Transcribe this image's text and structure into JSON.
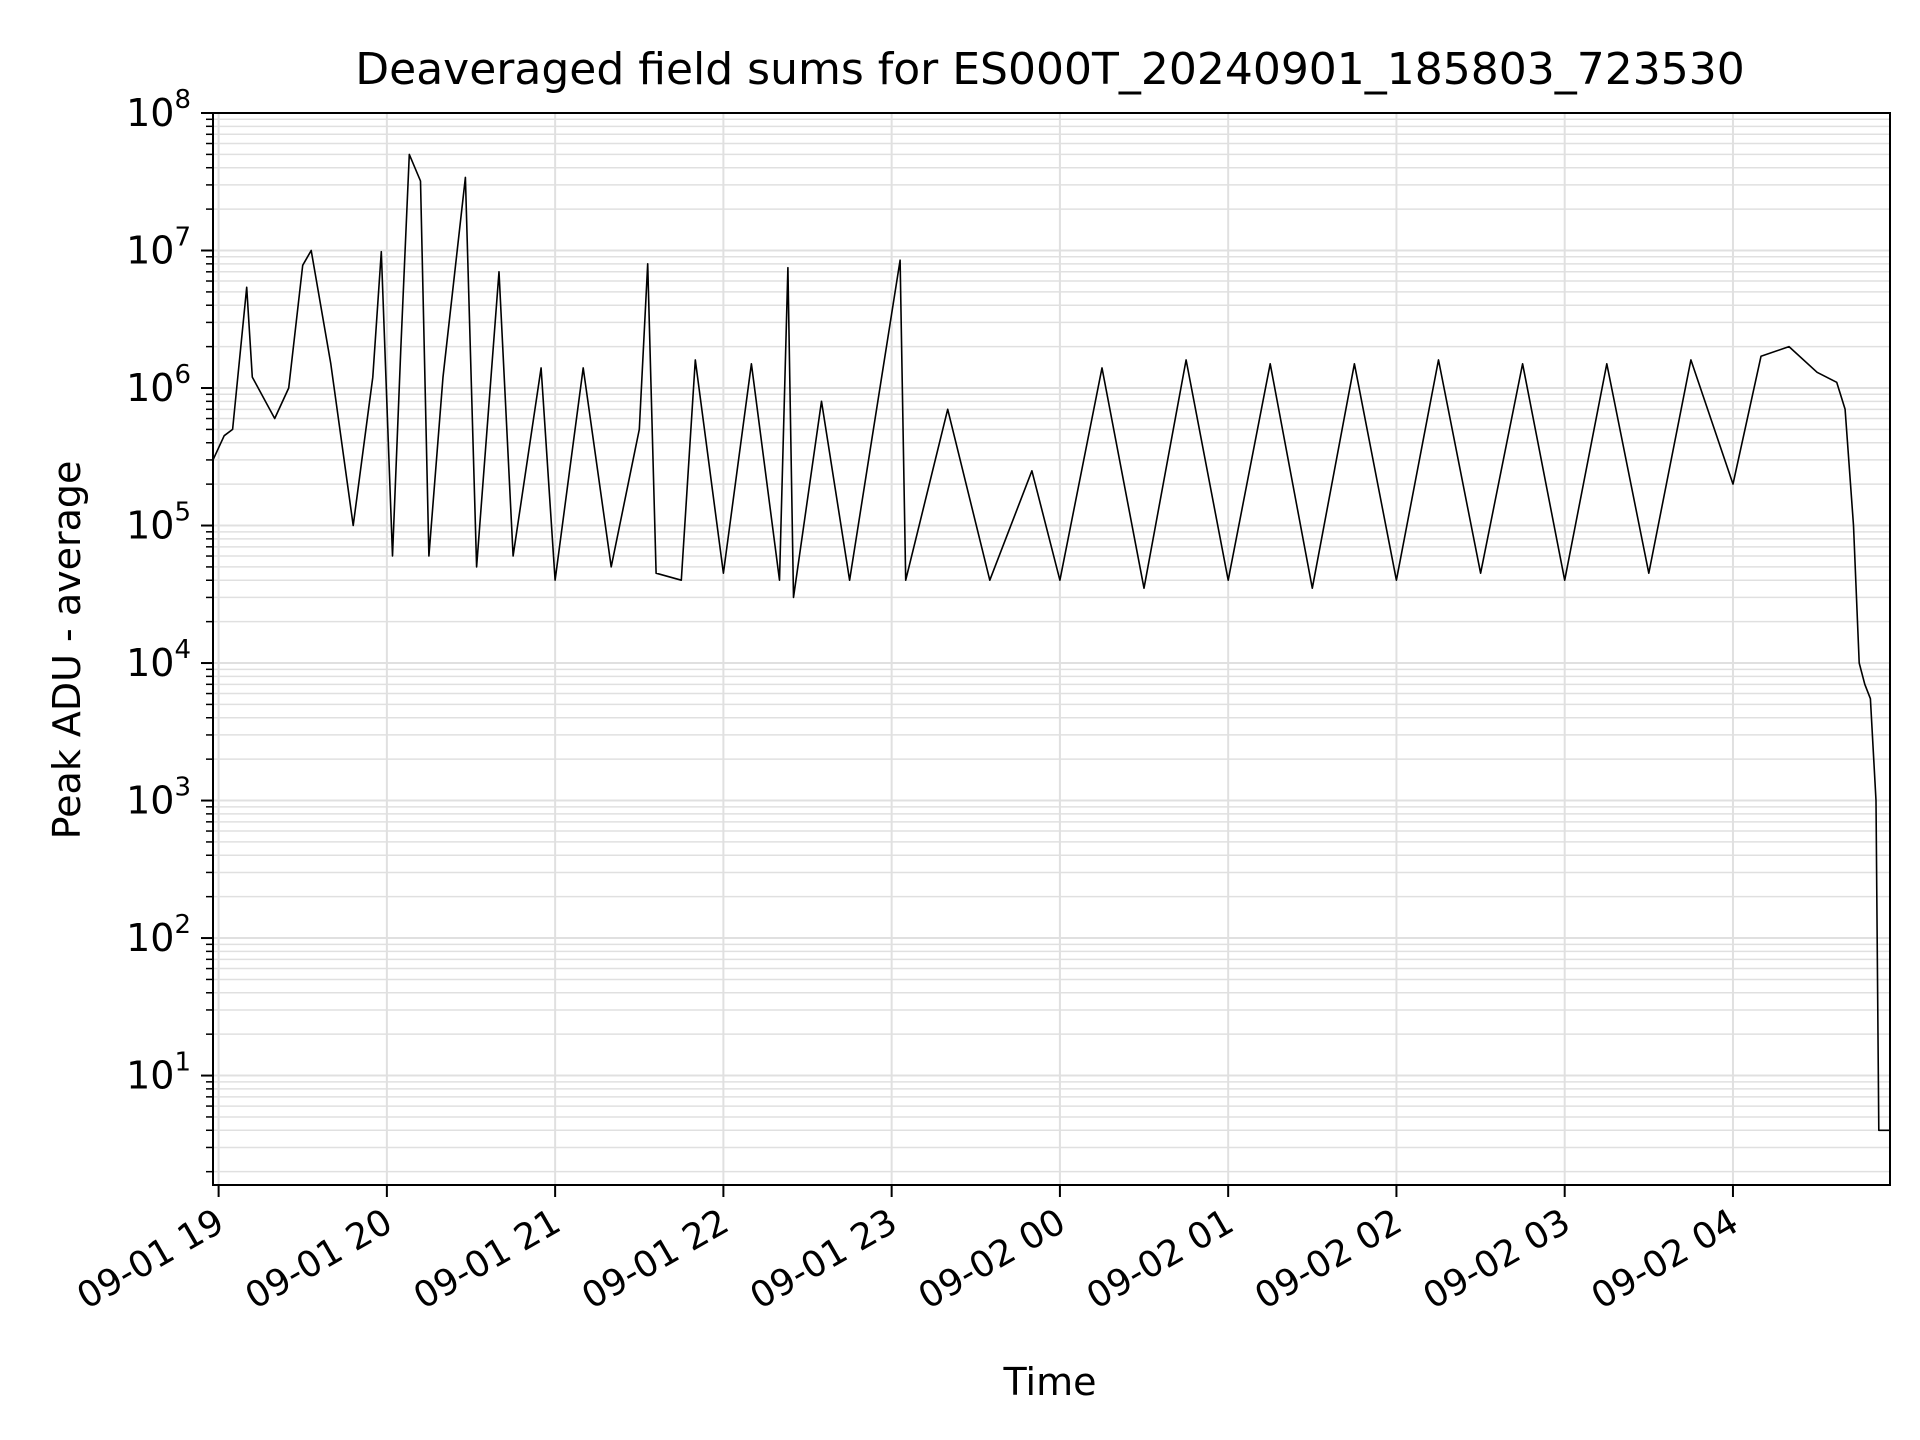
{
  "chart_data": {
    "type": "line",
    "title": "Deaveraged field sums for ES000T_20240901_185803_723530",
    "xlabel": "Time",
    "ylabel": "Peak ADU - average",
    "yscale": "log",
    "ylim": [
      1.6,
      100000000
    ],
    "xlim": [
      "2024-09-01 18:58",
      "2024-09-02 04:56"
    ],
    "grid": true,
    "line_color": "#000000",
    "grid_color": "#e0e0e0",
    "x_ticks": [
      {
        "t": "2024-09-01 19:00",
        "label": "09-01 19"
      },
      {
        "t": "2024-09-01 20:00",
        "label": "09-01 20"
      },
      {
        "t": "2024-09-01 21:00",
        "label": "09-01 21"
      },
      {
        "t": "2024-09-01 22:00",
        "label": "09-01 22"
      },
      {
        "t": "2024-09-01 23:00",
        "label": "09-01 23"
      },
      {
        "t": "2024-09-02 00:00",
        "label": "09-02 00"
      },
      {
        "t": "2024-09-02 01:00",
        "label": "09-02 01"
      },
      {
        "t": "2024-09-02 02:00",
        "label": "09-02 02"
      },
      {
        "t": "2024-09-02 03:00",
        "label": "09-02 03"
      },
      {
        "t": "2024-09-02 04:00",
        "label": "09-02 04"
      }
    ],
    "y_ticks": [
      {
        "value": 10,
        "base": "10",
        "exp": "1"
      },
      {
        "value": 100,
        "base": "10",
        "exp": "2"
      },
      {
        "value": 1000,
        "base": "10",
        "exp": "3"
      },
      {
        "value": 10000,
        "base": "10",
        "exp": "4"
      },
      {
        "value": 100000,
        "base": "10",
        "exp": "5"
      },
      {
        "value": 1000000,
        "base": "10",
        "exp": "6"
      },
      {
        "value": 10000000,
        "base": "10",
        "exp": "7"
      },
      {
        "value": 100000000,
        "base": "10",
        "exp": "8"
      }
    ],
    "series": [
      {
        "points": [
          [
            "2024-09-01 18:58",
            300000
          ],
          [
            "2024-09-01 19:02",
            450000
          ],
          [
            "2024-09-01 19:05",
            500000
          ],
          [
            "2024-09-01 19:10",
            5400000
          ],
          [
            "2024-09-01 19:12",
            1200000
          ],
          [
            "2024-09-01 19:20",
            600000
          ],
          [
            "2024-09-01 19:25",
            1000000
          ],
          [
            "2024-09-01 19:30",
            7800000
          ],
          [
            "2024-09-01 19:33",
            10000000
          ],
          [
            "2024-09-01 19:40",
            1500000
          ],
          [
            "2024-09-01 19:48",
            100000
          ],
          [
            "2024-09-01 19:55",
            1200000
          ],
          [
            "2024-09-01 19:58",
            9800000
          ],
          [
            "2024-09-01 20:02",
            60000
          ],
          [
            "2024-09-01 20:05",
            2000000
          ],
          [
            "2024-09-01 20:08",
            50000000
          ],
          [
            "2024-09-01 20:12",
            32000000
          ],
          [
            "2024-09-01 20:15",
            60000
          ],
          [
            "2024-09-01 20:20",
            1200000
          ],
          [
            "2024-09-01 20:28",
            34000000
          ],
          [
            "2024-09-01 20:32",
            50000
          ],
          [
            "2024-09-01 20:40",
            7000000
          ],
          [
            "2024-09-01 20:45",
            60000
          ],
          [
            "2024-09-01 20:55",
            1400000
          ],
          [
            "2024-09-01 21:00",
            40000
          ],
          [
            "2024-09-01 21:10",
            1400000
          ],
          [
            "2024-09-01 21:20",
            50000
          ],
          [
            "2024-09-01 21:30",
            500000
          ],
          [
            "2024-09-01 21:33",
            8000000
          ],
          [
            "2024-09-01 21:36",
            45000
          ],
          [
            "2024-09-01 21:45",
            40000
          ],
          [
            "2024-09-01 21:50",
            1600000
          ],
          [
            "2024-09-01 22:00",
            45000
          ],
          [
            "2024-09-01 22:10",
            1500000
          ],
          [
            "2024-09-01 22:20",
            40000
          ],
          [
            "2024-09-01 22:23",
            7500000
          ],
          [
            "2024-09-01 22:25",
            30000
          ],
          [
            "2024-09-01 22:35",
            800000
          ],
          [
            "2024-09-01 22:45",
            40000
          ],
          [
            "2024-09-01 23:03",
            8500000
          ],
          [
            "2024-09-01 23:05",
            40000
          ],
          [
            "2024-09-01 23:20",
            700000
          ],
          [
            "2024-09-01 23:35",
            40000
          ],
          [
            "2024-09-01 23:50",
            250000
          ],
          [
            "2024-09-02 00:00",
            40000
          ],
          [
            "2024-09-02 00:15",
            1400000
          ],
          [
            "2024-09-02 00:30",
            35000
          ],
          [
            "2024-09-02 00:45",
            1600000
          ],
          [
            "2024-09-02 01:00",
            40000
          ],
          [
            "2024-09-02 01:15",
            1500000
          ],
          [
            "2024-09-02 01:30",
            35000
          ],
          [
            "2024-09-02 01:45",
            1500000
          ],
          [
            "2024-09-02 02:00",
            40000
          ],
          [
            "2024-09-02 02:15",
            1600000
          ],
          [
            "2024-09-02 02:30",
            45000
          ],
          [
            "2024-09-02 02:45",
            1500000
          ],
          [
            "2024-09-02 03:00",
            40000
          ],
          [
            "2024-09-02 03:15",
            1500000
          ],
          [
            "2024-09-02 03:30",
            45000
          ],
          [
            "2024-09-02 03:45",
            1600000
          ],
          [
            "2024-09-02 04:00",
            200000
          ],
          [
            "2024-09-02 04:10",
            1700000
          ],
          [
            "2024-09-02 04:20",
            2000000
          ],
          [
            "2024-09-02 04:30",
            1300000
          ],
          [
            "2024-09-02 04:37",
            1100000
          ],
          [
            "2024-09-02 04:40",
            700000
          ],
          [
            "2024-09-02 04:43",
            100000
          ],
          [
            "2024-09-02 04:45",
            10000
          ],
          [
            "2024-09-02 04:47",
            7000
          ],
          [
            "2024-09-02 04:49",
            5500
          ],
          [
            "2024-09-02 04:51",
            1000
          ],
          [
            "2024-09-02 04:52",
            4
          ],
          [
            "2024-09-02 04:56",
            4
          ]
        ]
      }
    ]
  }
}
